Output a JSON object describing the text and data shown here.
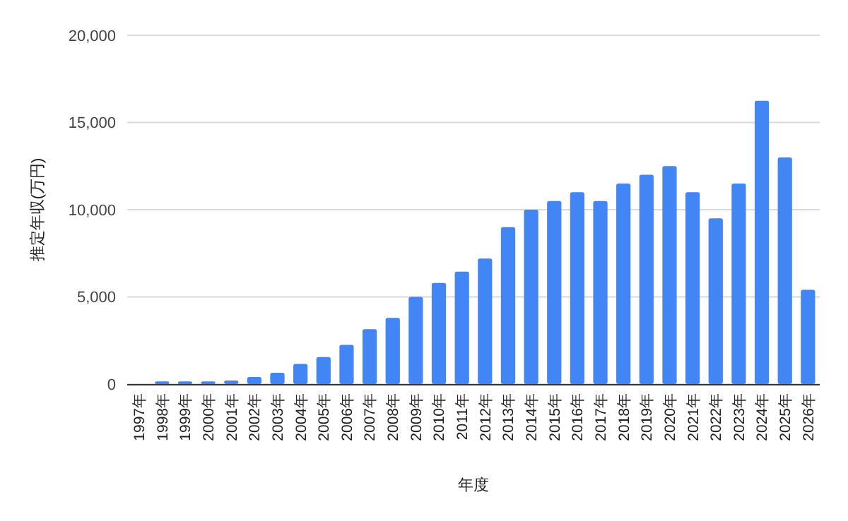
{
  "chart_data": {
    "type": "bar",
    "xlabel": "年度",
    "ylabel": "推定年収(万円)",
    "categories": [
      "1997年",
      "1998年",
      "1999年",
      "2000年",
      "2001年",
      "2002年",
      "2003年",
      "2004年",
      "2005年",
      "2006年",
      "2007年",
      "2008年",
      "2009年",
      "2010年",
      "2011年",
      "2012年",
      "2013年",
      "2014年",
      "2015年",
      "2016年",
      "2017年",
      "2018年",
      "2019年",
      "2020年",
      "2021年",
      "2022年",
      "2023年",
      "2024年",
      "2025年",
      "2026年"
    ],
    "values": [
      0,
      150,
      150,
      150,
      200,
      400,
      650,
      1150,
      1550,
      2250,
      3150,
      3800,
      5000,
      5800,
      6450,
      7200,
      9000,
      10000,
      10500,
      11000,
      10500,
      11500,
      12000,
      12500,
      11000,
      9500,
      11500,
      16250,
      13000,
      5400
    ],
    "color": "#4285f4",
    "ylim": [
      0,
      20000
    ],
    "yticks": [
      {
        "value": 0,
        "label": "0"
      },
      {
        "value": 5000,
        "label": "5,000"
      },
      {
        "value": 10000,
        "label": "10,000"
      },
      {
        "value": 15000,
        "label": "15,000"
      },
      {
        "value": 20000,
        "label": "20,000"
      }
    ],
    "grid": true
  }
}
